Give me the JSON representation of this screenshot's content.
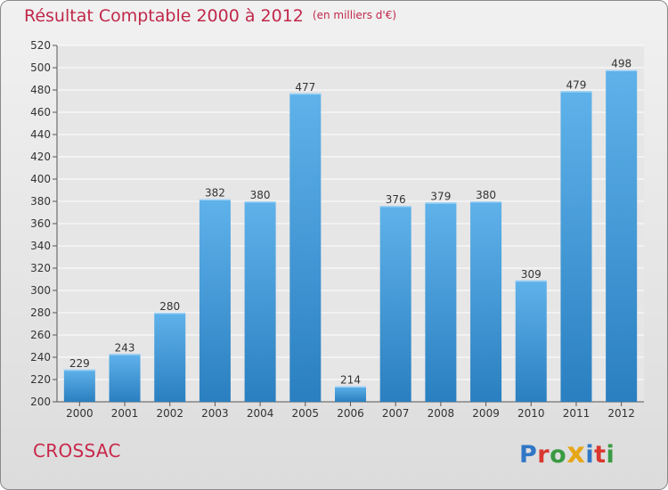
{
  "header": {
    "title": "Résultat Comptable 2000 à 2012",
    "subtitle": "(en milliers d'€)"
  },
  "footer": {
    "commune": "CROSSAC",
    "logo_letters": [
      "P",
      "r",
      "o",
      "x",
      "i",
      "t",
      "i"
    ],
    "logo_colors": [
      "#2f77c6",
      "#d9372f",
      "#3a9a43",
      "#e7a617",
      "#2f77c6",
      "#d9372f",
      "#3a9a43"
    ]
  },
  "colors": {
    "bar_top": "#5fb2ea",
    "bar_bottom": "#2a7fc0",
    "title": "#c0284a",
    "grid": "#ffffff"
  },
  "chart_data": {
    "type": "bar",
    "title": "Résultat Comptable 2000 à 2012",
    "subtitle": "(en milliers d'€)",
    "xlabel": "",
    "ylabel": "",
    "categories": [
      "2000",
      "2001",
      "2002",
      "2003",
      "2004",
      "2005",
      "2006",
      "2007",
      "2008",
      "2009",
      "2010",
      "2011",
      "2012"
    ],
    "values": [
      229,
      243,
      280,
      382,
      380,
      477,
      214,
      376,
      379,
      380,
      309,
      479,
      498
    ],
    "ylim": [
      200,
      520
    ],
    "yticks": [
      200,
      220,
      240,
      260,
      280,
      300,
      320,
      340,
      360,
      380,
      400,
      420,
      440,
      460,
      480,
      500,
      520
    ],
    "grid": true,
    "legend": "none"
  }
}
